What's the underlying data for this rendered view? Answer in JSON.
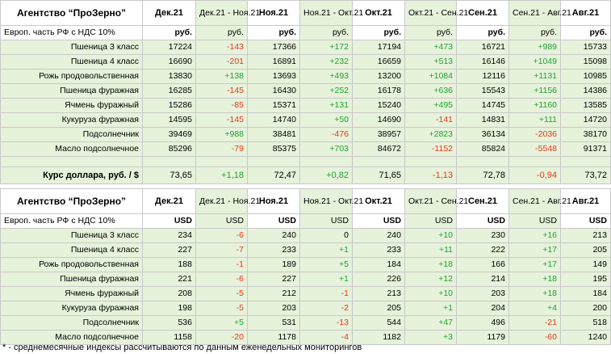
{
  "agency": "Агентство “ПроЗерно”",
  "periods": [
    {
      "label": "Дек.21",
      "type": "month"
    },
    {
      "label": "Дек.21 - Ноя.21",
      "type": "diff"
    },
    {
      "label": "Ноя.21",
      "type": "month"
    },
    {
      "label": "Ноя.21 - Окт.21",
      "type": "diff"
    },
    {
      "label": "Окт.21",
      "type": "month"
    },
    {
      "label": "Окт.21 - Сен.21",
      "type": "diff"
    },
    {
      "label": "Сен.21",
      "type": "month"
    },
    {
      "label": "Сен.21 - Авг.21",
      "type": "diff"
    },
    {
      "label": "Авг.21",
      "type": "month"
    }
  ],
  "rub_table": {
    "subheader": "Европ. часть РФ с НДС 10%",
    "units": [
      "руб.",
      "руб.",
      "руб.",
      "руб.",
      "руб.",
      "руб.",
      "руб.",
      "руб.",
      "руб."
    ],
    "rows": [
      {
        "name": "Пшеница 3 класс",
        "values": [
          "17224",
          "-143",
          "17366",
          "+172",
          "17194",
          "+473",
          "16721",
          "+989",
          "15733"
        ]
      },
      {
        "name": "Пшеница 4 класс",
        "values": [
          "16690",
          "-201",
          "16891",
          "+232",
          "16659",
          "+513",
          "16146",
          "+1049",
          "15098"
        ]
      },
      {
        "name": "Рожь продовольственная",
        "values": [
          "13830",
          "+138",
          "13693",
          "+493",
          "13200",
          "+1084",
          "12116",
          "+1131",
          "10985"
        ]
      },
      {
        "name": "Пшеница фуражная",
        "values": [
          "16285",
          "-145",
          "16430",
          "+252",
          "16178",
          "+636",
          "15543",
          "+1156",
          "14386"
        ]
      },
      {
        "name": "Ячмень фуражный",
        "values": [
          "15286",
          "-85",
          "15371",
          "+131",
          "15240",
          "+495",
          "14745",
          "+1160",
          "13585"
        ]
      },
      {
        "name": "Кукуруза фуражная",
        "values": [
          "14595",
          "-145",
          "14740",
          "+50",
          "14690",
          "-141",
          "14831",
          "+111",
          "14720"
        ]
      },
      {
        "name": "Подсолнечник",
        "values": [
          "39469",
          "+988",
          "38481",
          "-476",
          "38957",
          "+2823",
          "36134",
          "-2036",
          "38170"
        ]
      },
      {
        "name": "Масло подсолнечное",
        "values": [
          "85296",
          "-79",
          "85375",
          "+703",
          "84672",
          "-1152",
          "85824",
          "-5548",
          "91371"
        ]
      }
    ]
  },
  "exchange_rate": {
    "label": "Курс доллара, руб. / $",
    "values": [
      "73,65",
      "+1,18",
      "72,47",
      "+0,82",
      "71,65",
      "-1,13",
      "72,78",
      "-0,94",
      "73,72"
    ]
  },
  "usd_table": {
    "subheader": "Европ. часть РФ с НДС 10%",
    "units": [
      "USD",
      "USD",
      "USD",
      "USD",
      "USD",
      "USD",
      "USD",
      "USD",
      "USD"
    ],
    "rows": [
      {
        "name": "Пшеница 3 класс",
        "values": [
          "234",
          "-6",
          "240",
          "0",
          "240",
          "+10",
          "230",
          "+16",
          "213"
        ]
      },
      {
        "name": "Пшеница 4 класс",
        "values": [
          "227",
          "-7",
          "233",
          "+1",
          "233",
          "+11",
          "222",
          "+17",
          "205"
        ]
      },
      {
        "name": "Рожь продовольственная",
        "values": [
          "188",
          "-1",
          "189",
          "+5",
          "184",
          "+18",
          "166",
          "+17",
          "149"
        ]
      },
      {
        "name": "Пшеница фуражная",
        "values": [
          "221",
          "-6",
          "227",
          "+1",
          "226",
          "+12",
          "214",
          "+18",
          "195"
        ]
      },
      {
        "name": "Ячмень фуражный",
        "values": [
          "208",
          "-5",
          "212",
          "-1",
          "213",
          "+10",
          "203",
          "+18",
          "184"
        ]
      },
      {
        "name": "Кукуруза фуражная",
        "values": [
          "198",
          "-5",
          "203",
          "-2",
          "205",
          "+1",
          "204",
          "+4",
          "200"
        ]
      },
      {
        "name": "Подсолнечник",
        "values": [
          "536",
          "+5",
          "531",
          "-13",
          "544",
          "+47",
          "496",
          "-21",
          "518"
        ]
      },
      {
        "name": "Масло подсолнечное",
        "values": [
          "1158",
          "-20",
          "1178",
          "-4",
          "1182",
          "+3",
          "1179",
          "-60",
          "1240"
        ]
      }
    ]
  },
  "footnote": "* - среднемесячные индексы рассчитываются по данным еженедельных мониторингов",
  "colors": {
    "negative": "#e23b1e",
    "positive": "#21a336",
    "band": "#e6f2da",
    "grid": "#c9c9c9"
  }
}
